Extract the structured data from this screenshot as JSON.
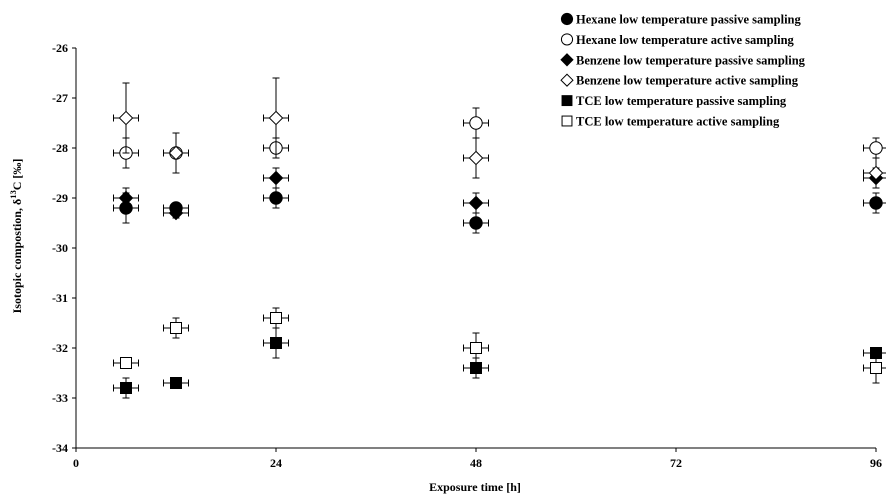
{
  "chart_data": {
    "type": "scatter",
    "title": "",
    "xlabel": "Exposure time [h]",
    "ylabel_parts": [
      "Isotopic  compostion, δ",
      "13",
      "C [‰]"
    ],
    "xlim": [
      0,
      96
    ],
    "ylim": [
      -34,
      -26
    ],
    "x_ticks": [
      0,
      24,
      48,
      72,
      96
    ],
    "y_ticks": [
      -34,
      -33,
      -32,
      -31,
      -30,
      -29,
      -28,
      -27,
      -26
    ],
    "x_tick_labels": [
      "0",
      "24",
      "48",
      "72",
      "96"
    ],
    "y_tick_labels": [
      "-34",
      "-33",
      "-32",
      "-31",
      "-30",
      "-29",
      "-28",
      "-27",
      "-26"
    ],
    "grid": false,
    "legend_position": "top-right",
    "x_error": 1.5,
    "series": [
      {
        "name": "Hexane low temperature passive sampling",
        "marker": "circle",
        "fill": "#000000",
        "points": [
          {
            "x": 6,
            "y": -29.2,
            "err": 0.3
          },
          {
            "x": 12,
            "y": -29.2,
            "err": 0.1
          },
          {
            "x": 24,
            "y": -29.0,
            "err": 0.2
          },
          {
            "x": 48,
            "y": -29.5,
            "err": 0.2
          },
          {
            "x": 96,
            "y": -29.1,
            "err": 0.2
          }
        ]
      },
      {
        "name": "Hexane low temperature active sampling",
        "marker": "circle",
        "fill": "#ffffff",
        "points": [
          {
            "x": 6,
            "y": -28.1,
            "err": 0.3
          },
          {
            "x": 12,
            "y": -28.1,
            "err": 0.1
          },
          {
            "x": 24,
            "y": -28.0,
            "err": 0.2
          },
          {
            "x": 48,
            "y": -27.5,
            "err": 0.3
          },
          {
            "x": 96,
            "y": -28.0,
            "err": 0.2
          }
        ]
      },
      {
        "name": "Benzene low temperature passive sampling",
        "marker": "diamond",
        "fill": "#000000",
        "points": [
          {
            "x": 6,
            "y": -29.0,
            "err": 0.2
          },
          {
            "x": 12,
            "y": -29.3,
            "err": 0.1
          },
          {
            "x": 24,
            "y": -28.6,
            "err": 0.2
          },
          {
            "x": 48,
            "y": -29.1,
            "err": 0.2
          },
          {
            "x": 96,
            "y": -28.6,
            "err": 0.2
          }
        ]
      },
      {
        "name": "Benzene low temperature active sampling",
        "marker": "diamond",
        "fill": "#ffffff",
        "points": [
          {
            "x": 6,
            "y": -27.4,
            "err": 0.7
          },
          {
            "x": 12,
            "y": -28.1,
            "err": 0.4
          },
          {
            "x": 24,
            "y": -27.4,
            "err": 0.8
          },
          {
            "x": 48,
            "y": -28.2,
            "err": 0.4
          },
          {
            "x": 96,
            "y": -28.5,
            "err": 0.3
          }
        ]
      },
      {
        "name": "TCE low temperature passive sampling",
        "marker": "square",
        "fill": "#000000",
        "points": [
          {
            "x": 6,
            "y": -32.8,
            "err": 0.2
          },
          {
            "x": 12,
            "y": -32.7,
            "err": 0.05
          },
          {
            "x": 24,
            "y": -31.9,
            "err": 0.3
          },
          {
            "x": 48,
            "y": -32.4,
            "err": 0.2
          },
          {
            "x": 96,
            "y": -32.1,
            "err": 0.05
          }
        ]
      },
      {
        "name": "TCE low temperature active sampling",
        "marker": "square",
        "fill": "#ffffff",
        "points": [
          {
            "x": 6,
            "y": -32.3,
            "err": 0.05
          },
          {
            "x": 12,
            "y": -31.6,
            "err": 0.2
          },
          {
            "x": 24,
            "y": -31.4,
            "err": 0.2
          },
          {
            "x": 48,
            "y": -32.0,
            "err": 0.3
          },
          {
            "x": 96,
            "y": -32.4,
            "err": 0.3
          }
        ]
      }
    ]
  }
}
